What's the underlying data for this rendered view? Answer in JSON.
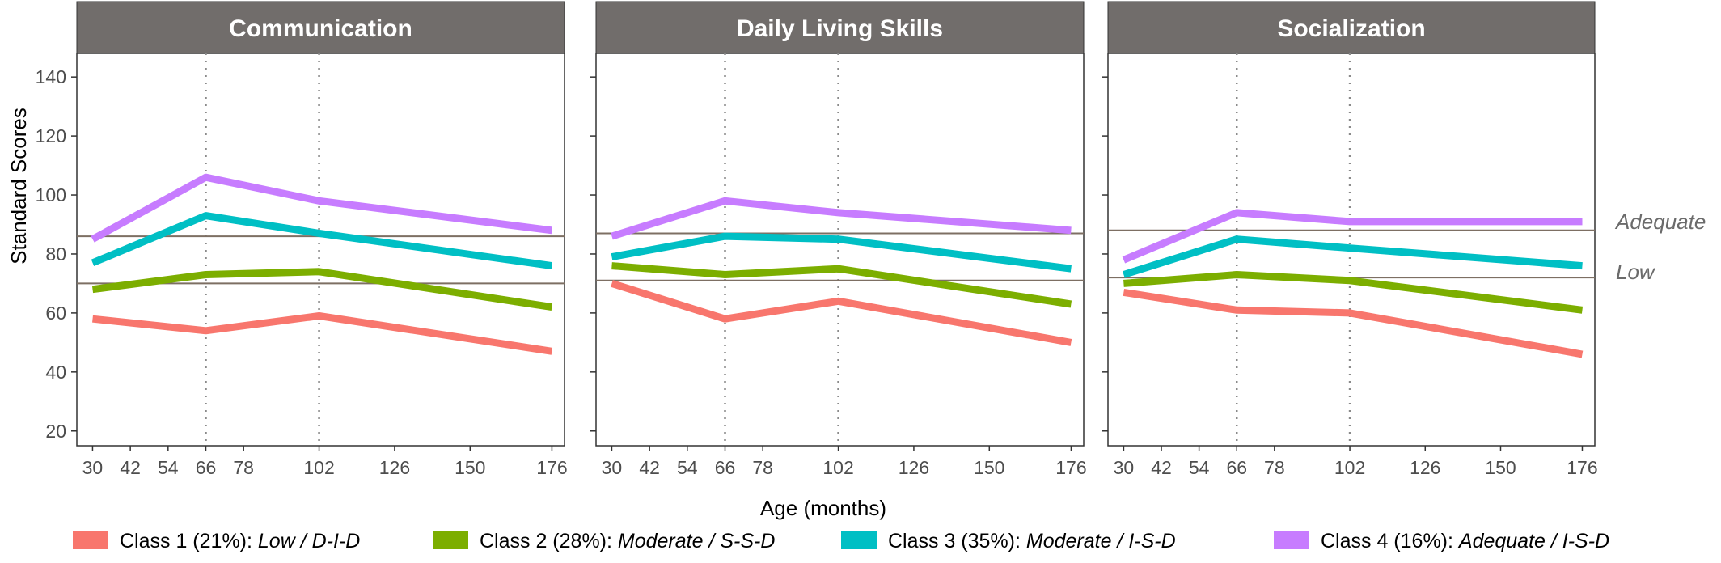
{
  "chart_data": {
    "type": "line",
    "facets": [
      "Communication",
      "Daily Living Skills",
      "Socialization"
    ],
    "xlabel": "Age (months)",
    "ylabel": "Standard Scores",
    "x_ticks": [
      30,
      42,
      54,
      66,
      78,
      102,
      126,
      150,
      176
    ],
    "y_ticks": [
      20,
      40,
      60,
      80,
      100,
      120,
      140
    ],
    "xlim": [
      25,
      180
    ],
    "ylim": [
      15,
      148
    ],
    "grid": false,
    "vertical_markers": [
      66,
      102
    ],
    "x": [
      30,
      66,
      102,
      176
    ],
    "reference_labels": {
      "adequate": "Adequate",
      "low": "Low"
    },
    "reference_lines": [
      {
        "Communication": 86,
        "Daily Living Skills": 87,
        "Socialization": 88
      },
      {
        "Communication": 70,
        "Daily Living Skills": 71,
        "Socialization": 72
      }
    ],
    "series": [
      {
        "name": "Class 1 (21%): ",
        "label_italic": "Low / D-I-D",
        "color": "#F8766D",
        "values": {
          "Communication": [
            58,
            54,
            59,
            47
          ],
          "Daily Living Skills": [
            70,
            58,
            64,
            50
          ],
          "Socialization": [
            67,
            61,
            60,
            46
          ]
        }
      },
      {
        "name": "Class 2 (28%): ",
        "label_italic": "Moderate / S-S-D",
        "color": "#7CAE00",
        "values": {
          "Communication": [
            68,
            73,
            74,
            62
          ],
          "Daily Living Skills": [
            76,
            73,
            75,
            63
          ],
          "Socialization": [
            70,
            73,
            71,
            61
          ]
        }
      },
      {
        "name": "Class 3 (35%): ",
        "label_italic": "Moderate / I-S-D",
        "color": "#00BFC4",
        "values": {
          "Communication": [
            77,
            93,
            87,
            76
          ],
          "Daily Living Skills": [
            79,
            86,
            85,
            75
          ],
          "Socialization": [
            73,
            85,
            82,
            76
          ]
        }
      },
      {
        "name": "Class 4 (16%): ",
        "label_italic": "Adequate / I-S-D",
        "color": "#C77CFF",
        "values": {
          "Communication": [
            85,
            106,
            98,
            88
          ],
          "Daily Living Skills": [
            86,
            98,
            94,
            88
          ],
          "Socialization": [
            78,
            94,
            91,
            91
          ]
        }
      }
    ],
    "legend_position": "bottom"
  }
}
